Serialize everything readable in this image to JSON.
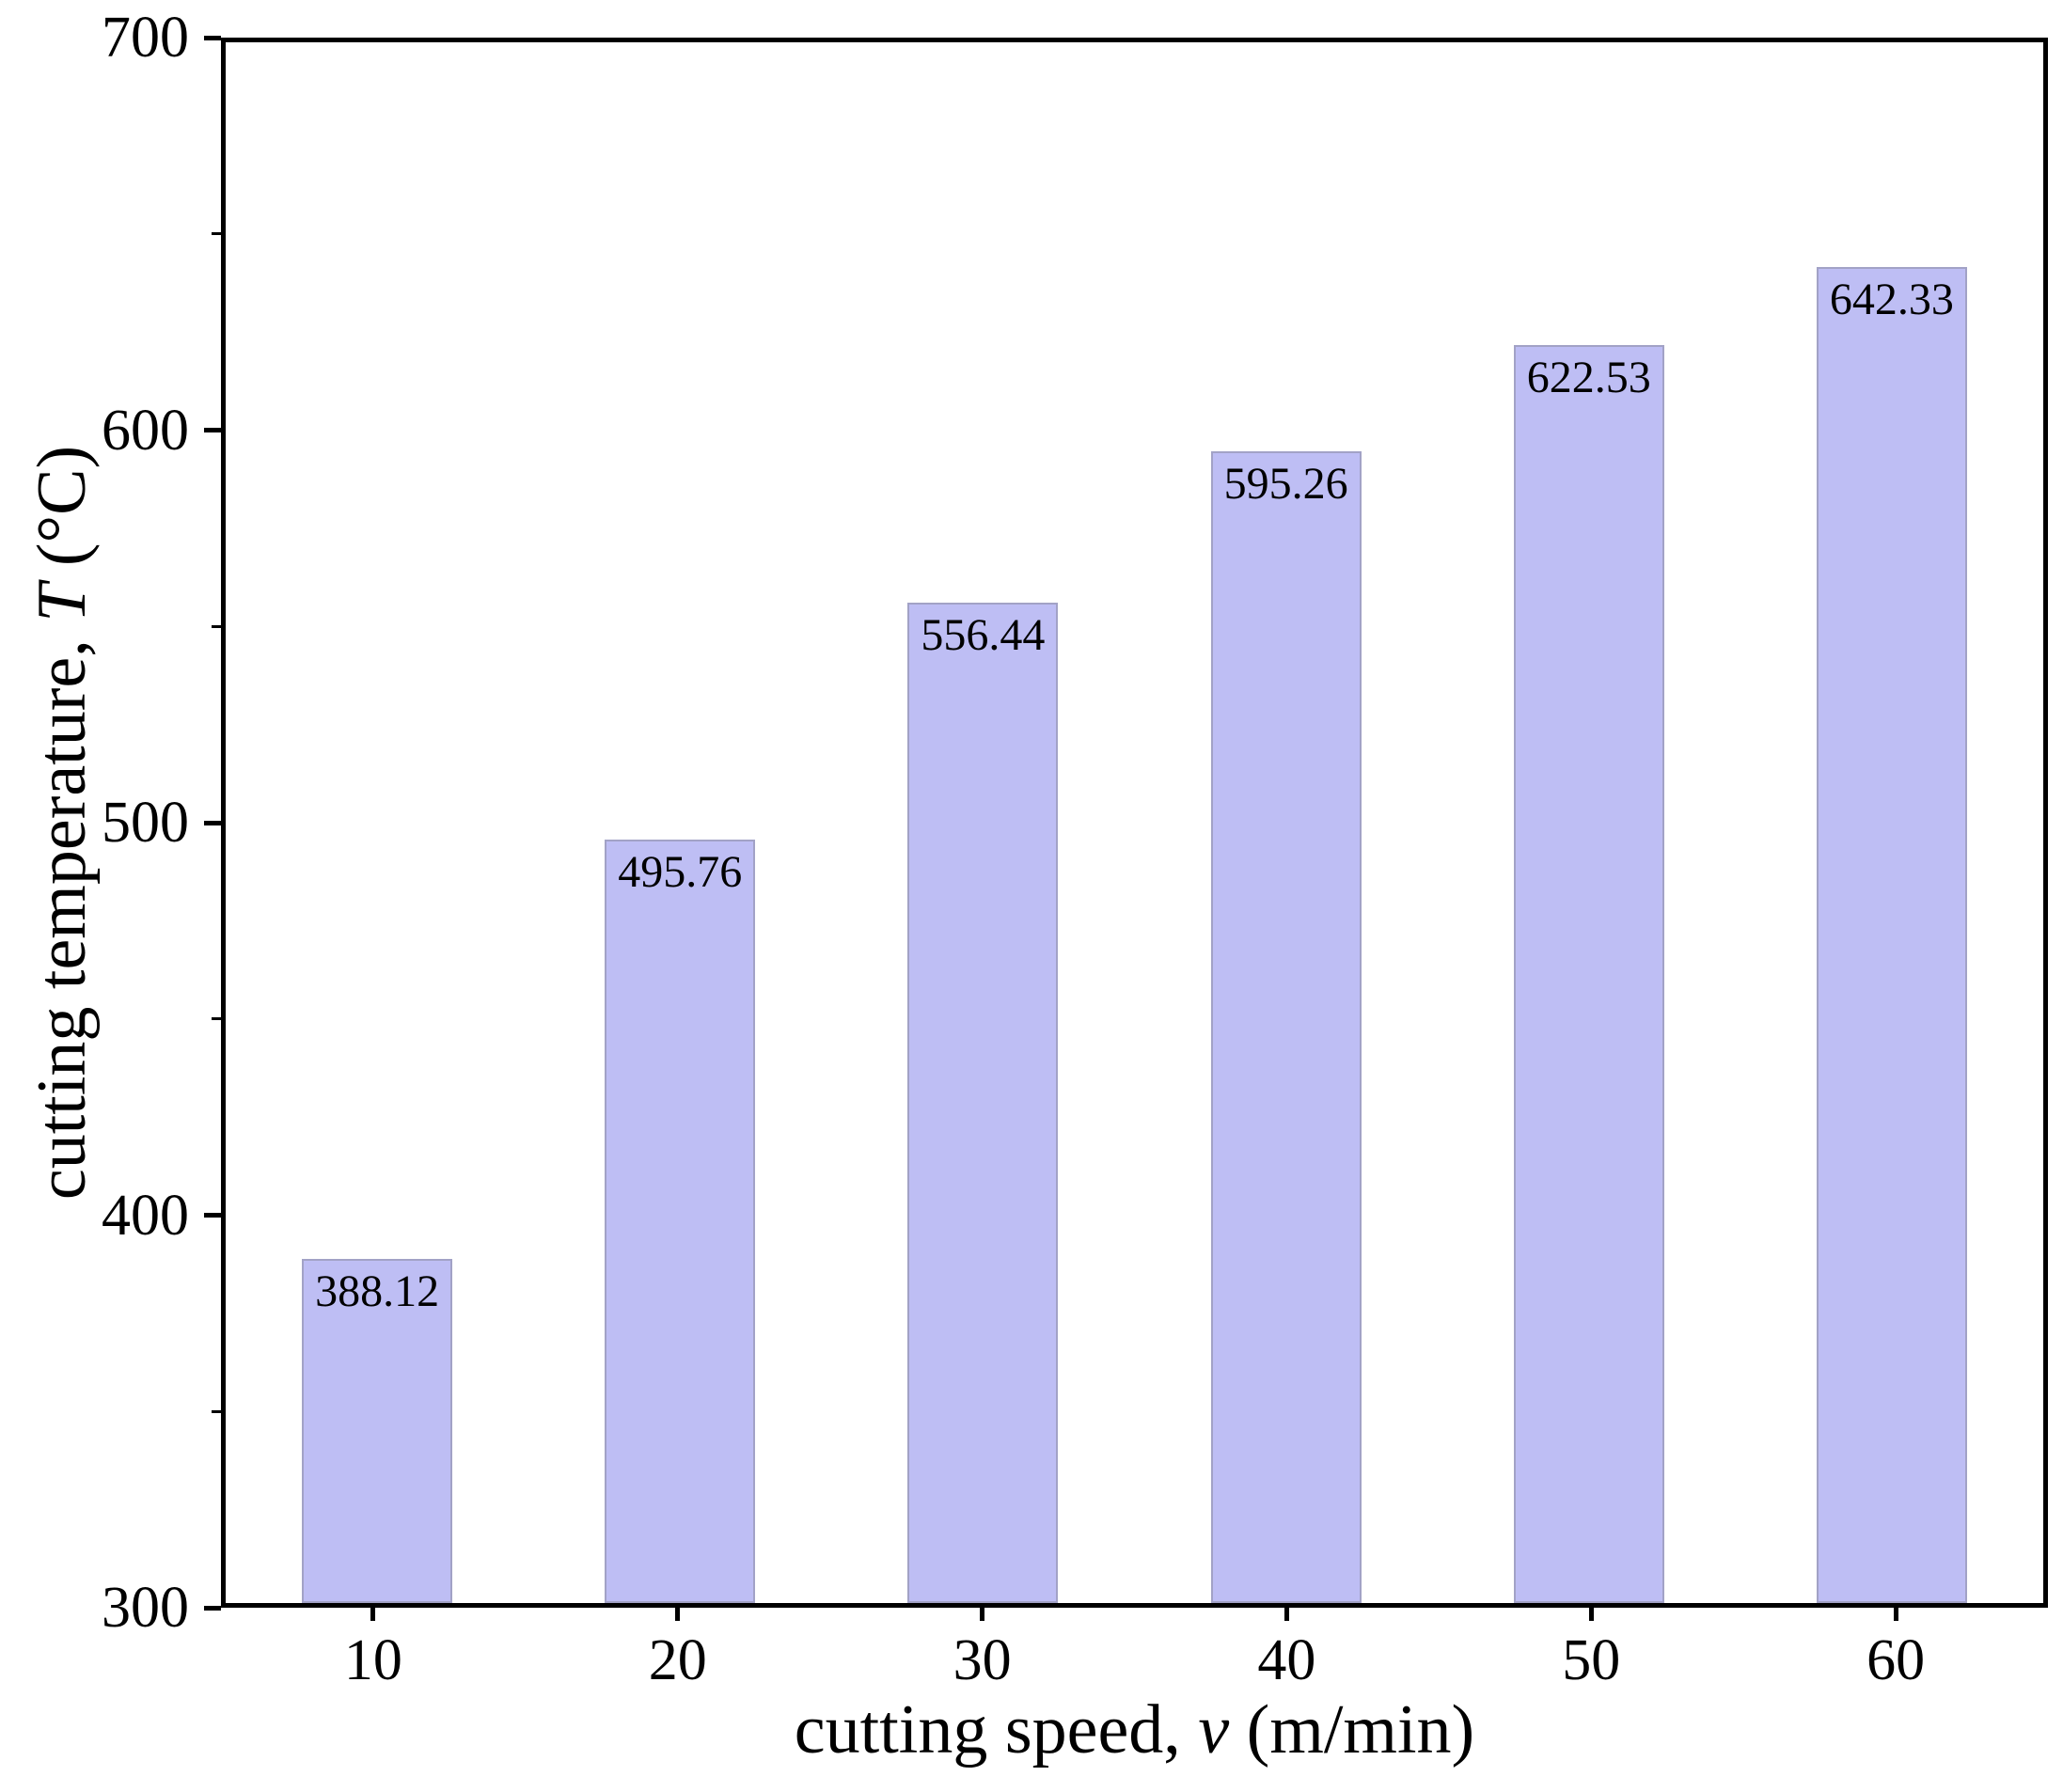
{
  "chart_data": {
    "type": "bar",
    "title": "",
    "categories": [
      "10",
      "20",
      "30",
      "40",
      "50",
      "60"
    ],
    "values": [
      388.12,
      495.76,
      556.44,
      595.26,
      622.53,
      642.33
    ],
    "bar_labels": [
      "388.12",
      "495.76",
      "556.44",
      "595.26",
      "622.53",
      "642.33"
    ],
    "xlabel": "cutting speed, v (m/min)",
    "ylabel": "cutting temperature, T (°C)",
    "xlabel_parts": {
      "prefix": "cutting speed, ",
      "var": "v",
      "suffix": " (m/min)"
    },
    "ylabel_parts": {
      "prefix": "cutting temperature, ",
      "var": "T",
      "suffix": " (°C)"
    },
    "ylim": [
      300,
      700
    ],
    "y_major_ticks": [
      "300",
      "400",
      "500",
      "600",
      "700"
    ],
    "y_major_tick_values": [
      300,
      400,
      500,
      600,
      700
    ],
    "y_minor_tick_values": [
      350,
      450,
      550,
      650
    ],
    "grid": false,
    "legend": null,
    "colors": {
      "bar_fill": "#bebef4",
      "bar_border": "#a2a2c6",
      "axis": "#000000",
      "text": "#000000",
      "background": "#ffffff"
    }
  }
}
